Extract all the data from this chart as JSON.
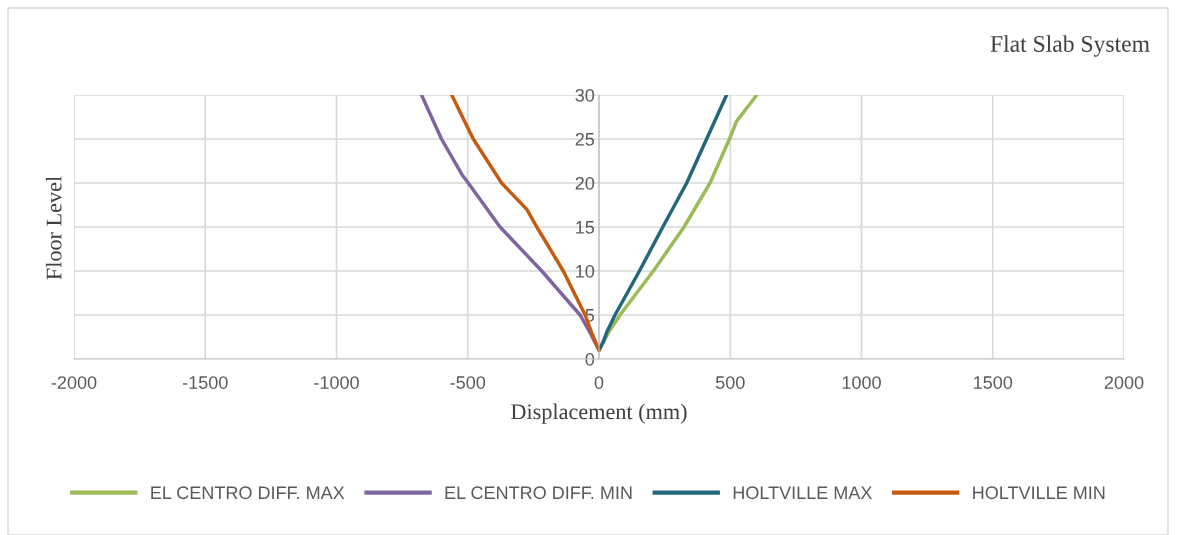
{
  "chart_data": {
    "type": "line",
    "title": "Flat Slab System",
    "xlabel": "Displacement (mm)",
    "ylabel": "Floor Level",
    "xlim": [
      -2000,
      2000
    ],
    "xticks": [
      -2000,
      -1500,
      -1000,
      -500,
      0,
      500,
      1000,
      1500,
      2000
    ],
    "ylim": [
      0,
      30
    ],
    "yticks": [
      0,
      5,
      10,
      15,
      20,
      25,
      30
    ],
    "grid": true,
    "legend": "bottom",
    "marker": "none",
    "line_style": "solid",
    "series": [
      {
        "name": "EL CENTRO DIFF. MAX",
        "color": "#9bbb59",
        "x": [
          0,
          36,
          80,
          207,
          324,
          423,
          497,
          524,
          601
        ],
        "values": [
          1,
          3,
          5,
          10,
          15,
          20,
          25,
          27,
          30
        ]
      },
      {
        "name": "EL CENTRO DIFF. MIN",
        "color": "#8064a2",
        "x": [
          0,
          -34,
          -72,
          -218,
          -377,
          -498,
          -523,
          -600,
          -676
        ],
        "values": [
          1,
          3,
          5,
          10,
          15,
          20,
          21,
          25,
          30
        ]
      },
      {
        "name": "HOLTVILLE MAX",
        "color": "#23687a",
        "x": [
          0,
          17,
          29,
          61,
          154,
          243,
          334,
          410,
          486
        ],
        "values": [
          1,
          2,
          3,
          5,
          10,
          15,
          20,
          25,
          30
        ]
      },
      {
        "name": "HOLTVILLE MIN",
        "color": "#c55a11",
        "x": [
          0,
          -28,
          -53,
          -136,
          -237,
          -275,
          -371,
          -479,
          -561
        ],
        "values": [
          1,
          3,
          5,
          10,
          15,
          17,
          20,
          25,
          30
        ]
      }
    ]
  }
}
